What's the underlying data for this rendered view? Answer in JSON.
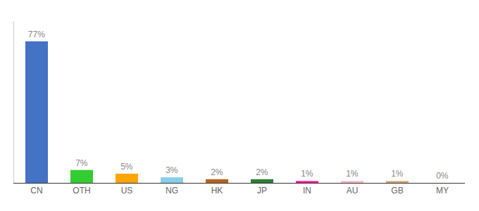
{
  "chart_data": {
    "type": "bar",
    "categories": [
      "CN",
      "OTH",
      "US",
      "NG",
      "HK",
      "JP",
      "IN",
      "AU",
      "GB",
      "MY"
    ],
    "values": [
      77,
      7,
      5,
      3,
      2,
      2,
      1,
      1,
      1,
      0
    ],
    "value_labels": [
      "77%",
      "7%",
      "5%",
      "3%",
      "2%",
      "2%",
      "1%",
      "1%",
      "1%",
      "0%"
    ],
    "colors": [
      "#4472C4",
      "#33CC33",
      "#FFA500",
      "#87CEEB",
      "#B8621B",
      "#2E7D32",
      "#FF1493",
      "#FFB6C1",
      "#D2A679",
      "#D2B48C"
    ],
    "ylim": [
      0,
      88
    ],
    "yticks": [],
    "data_labels": true,
    "tick_labels": "x",
    "grid": false
  }
}
